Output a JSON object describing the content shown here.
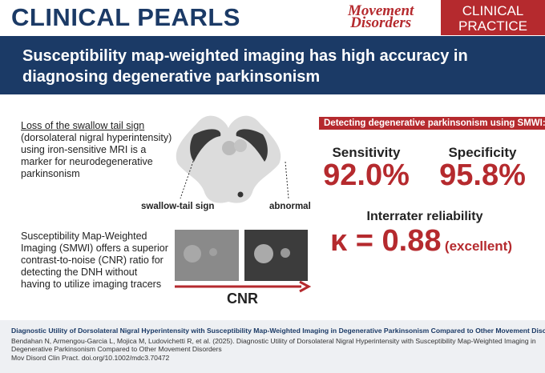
{
  "header": {
    "title": "CLINICAL PEARLS",
    "logo": [
      "Movement",
      "Disorders"
    ],
    "badge": [
      "CLINICAL",
      "PRACTICE"
    ]
  },
  "headline": [
    "Susceptibility map-weighted imaging has high accuracy in",
    "diagnosing degenerative parkinsonism"
  ],
  "left_top": {
    "underlined": "Loss of the swallow tail sign",
    "lines": [
      "(dorsolateral nigral hyperintensity)",
      "using iron-sensitive MRI is a",
      "marker for neurodegenerative",
      "parkinsonism"
    ]
  },
  "diagram": {
    "labels": [
      "swallow-tail sign",
      "abnormal"
    ]
  },
  "left_bottom": {
    "lines": [
      "Susceptibility Map-Weighted",
      "Imaging (SMWI) offers a superior",
      "contrast-to-noise (CNR) ratio for",
      "detecting the DNH without",
      "having to utilize imaging tracers"
    ],
    "axis_label": "CNR"
  },
  "results": {
    "banner": "Detecting degenerative parkinsonism using SMWI:",
    "stats": [
      {
        "label": "Sensitivity",
        "value": "92.0%"
      },
      {
        "label": "Specificity",
        "value": "95.8%"
      }
    ],
    "reliability": {
      "label": "Interrater reliability",
      "value": "κ = 0.88",
      "note": "(excellent)"
    }
  },
  "footer": {
    "title": "Diagnostic Utility of Dorsolateral Nigral Hyperintensity with Susceptibility Map-Weighted Imaging in Degenerative Parkinsonism Compared to Other Movement Disorders",
    "citation": [
      "Bendahan N, Armengou-Garcia L, Mojica M, Ludovichetti R, et al. (2025). Diagnostic Utility of Dorsolateral Nigral Hyperintensity with Susceptibility Map-Weighted Imaging in",
      "Degenerative Parkinsonism Compared to Other Movement Disorders",
      "Mov Disord Clin Pract. doi.org/10.1002/mdc3.70472"
    ]
  }
}
